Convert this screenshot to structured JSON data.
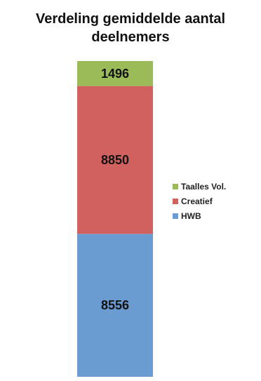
{
  "chart_data": {
    "type": "bar",
    "stacked": true,
    "title": "Verdeling gemiddelde aantal deelnemers",
    "title_lines": [
      "Verdeling gemiddelde aantal",
      "deelnemers"
    ],
    "categories": [
      ""
    ],
    "series": [
      {
        "name": "HWB",
        "values": [
          8556
        ],
        "color": "#6a9bd1"
      },
      {
        "name": "Creatief",
        "values": [
          8850
        ],
        "color": "#d0615f"
      },
      {
        "name": "Taalles Vol.",
        "values": [
          1496
        ],
        "color": "#9bbb59"
      }
    ],
    "legend_order": [
      "Taalles Vol.",
      "Creatief",
      "HWB"
    ],
    "legend_position": "right",
    "axes_visible": false,
    "grid": false
  }
}
